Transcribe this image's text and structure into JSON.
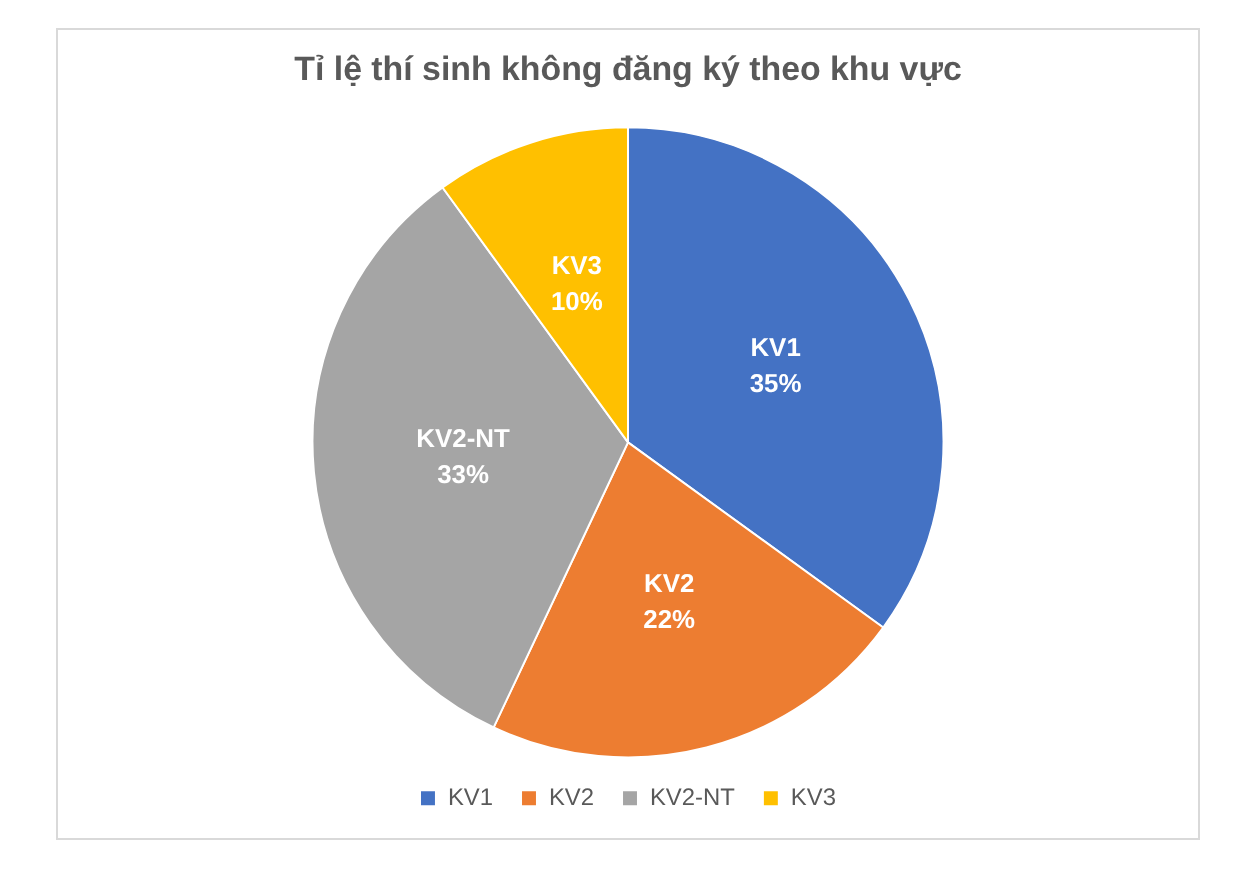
{
  "chart_data": {
    "type": "pie",
    "title": "Tỉ lệ thí sinh không đăng ký theo khu vực",
    "categories": [
      "KV1",
      "KV2",
      "KV2-NT",
      "KV3"
    ],
    "values": [
      35,
      22,
      33,
      10
    ],
    "colors": [
      "#4472c4",
      "#ed7d31",
      "#a5a5a5",
      "#ffc000"
    ],
    "value_labels": [
      "35%",
      "22%",
      "33%",
      "10%"
    ],
    "legend": "bottom"
  }
}
